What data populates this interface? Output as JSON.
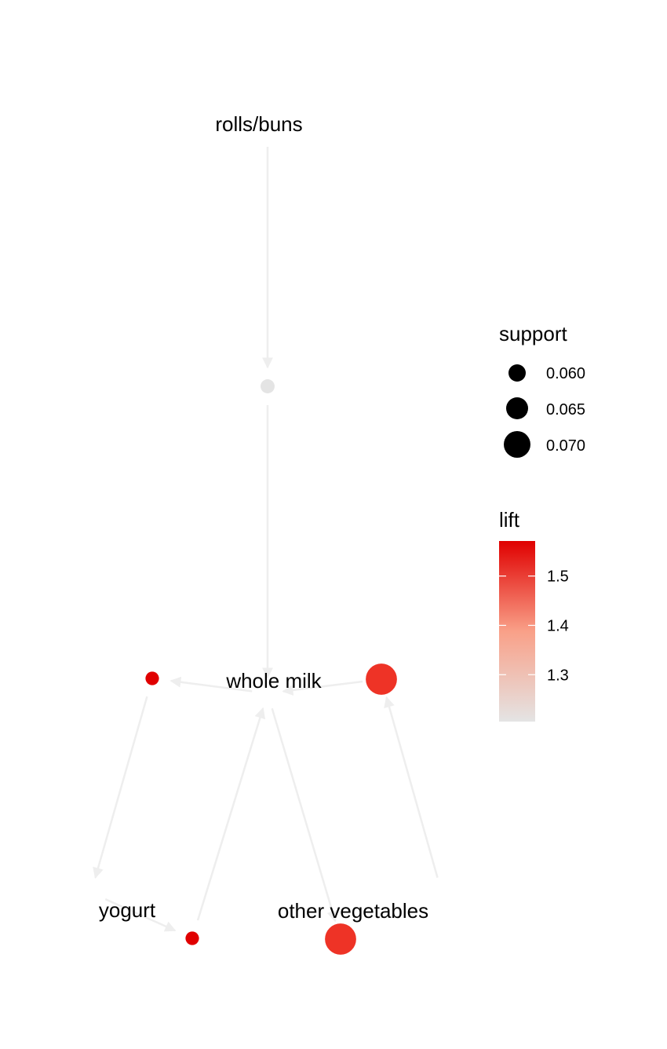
{
  "graph": {
    "items": [
      {
        "label": "rolls/buns"
      },
      {
        "label": "whole milk"
      },
      {
        "label": "yogurt"
      },
      {
        "label": "other vegetables"
      }
    ],
    "rules": [
      {
        "id": "rule1",
        "support": 0.0566,
        "lift": 1.205,
        "color": "#e4e4e4"
      },
      {
        "id": "rule2",
        "support": 0.056,
        "lift": 1.571,
        "color": "#e00000"
      },
      {
        "id": "rule3",
        "support": 0.056,
        "lift": 1.571,
        "color": "#e00000"
      },
      {
        "id": "rule4",
        "support": 0.0748,
        "lift": 1.514,
        "color": "#ee3326"
      },
      {
        "id": "rule5",
        "support": 0.0748,
        "lift": 1.514,
        "color": "#ee3326"
      }
    ],
    "edges": [
      {
        "from": "rolls/buns",
        "to": "rule1"
      },
      {
        "from": "rule1",
        "to": "whole milk"
      },
      {
        "from": "whole milk",
        "to": "rule2"
      },
      {
        "from": "rule2",
        "to": "yogurt"
      },
      {
        "from": "yogurt",
        "to": "rule3"
      },
      {
        "from": "rule3",
        "to": "whole milk"
      },
      {
        "from": "other vegetables",
        "to": "rule4"
      },
      {
        "from": "rule4",
        "to": "whole milk"
      },
      {
        "from": "whole milk",
        "to": "rule5"
      }
    ],
    "edge_color": "#eeeeee"
  },
  "legend": {
    "support": {
      "title": "support",
      "entries": [
        {
          "label": "0.060",
          "value": 0.06
        },
        {
          "label": "0.065",
          "value": 0.065
        },
        {
          "label": "0.070",
          "value": 0.07
        }
      ]
    },
    "lift": {
      "title": "lift",
      "min": 1.205,
      "max": 1.571,
      "low_color": "#e4e4e4",
      "high_color": "#e00000",
      "ticks": [
        {
          "label": "1.3",
          "value": 1.3
        },
        {
          "label": "1.4",
          "value": 1.4
        },
        {
          "label": "1.5",
          "value": 1.5
        }
      ]
    }
  }
}
